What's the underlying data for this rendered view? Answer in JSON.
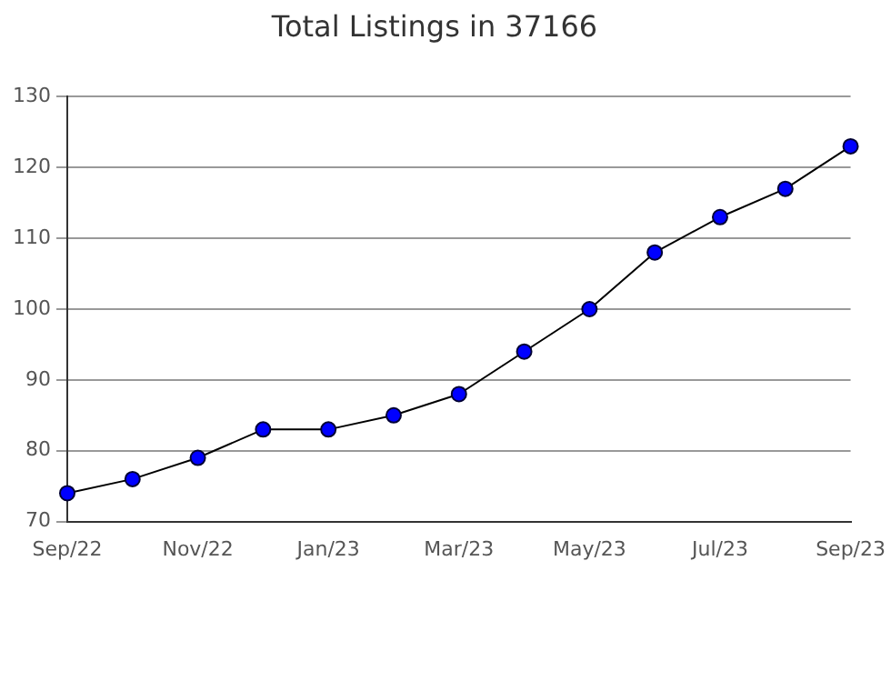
{
  "chart_data": {
    "type": "line",
    "title": "Total Listings in 37166",
    "categories": [
      "Sep/22",
      null,
      "Nov/22",
      null,
      "Jan/23",
      null,
      "Mar/23",
      null,
      "May/23",
      null,
      "Jul/23",
      null,
      "Sep/23"
    ],
    "series": [
      {
        "color": "#0000ff",
        "values": [
          74,
          76,
          79,
          83,
          83,
          85,
          88,
          94,
          100,
          108,
          113,
          117,
          123
        ]
      }
    ],
    "ylim": [
      70,
      130
    ],
    "yticks": [
      70,
      80,
      90,
      100,
      110,
      120,
      130
    ],
    "grid": "y",
    "legend": false,
    "marker": "circle",
    "line_style": "solid"
  }
}
